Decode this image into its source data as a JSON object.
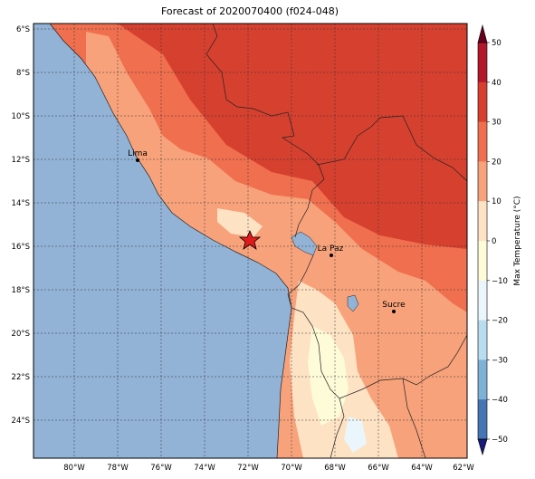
{
  "title": "Forecast of 2020070400 (f024-048)",
  "map": {
    "lon_ticks": [
      "80°W",
      "78°W",
      "76°W",
      "74°W",
      "72°W",
      "70°W",
      "68°W",
      "66°W",
      "64°W",
      "62°W"
    ],
    "lat_ticks": [
      "6°S",
      "8°S",
      "10°S",
      "12°S",
      "14°S",
      "16°S",
      "18°S",
      "20°S",
      "22°S",
      "24°S"
    ],
    "cities": [
      {
        "name": "Lima"
      },
      {
        "name": "La Paz"
      },
      {
        "name": "Sucre"
      }
    ],
    "marker": {
      "icon": "star-icon",
      "color": "#e31a1c"
    },
    "ocean_color": "#92b3d6"
  },
  "colorbar": {
    "label": "Max Temperature (°C)",
    "ticks": [
      "50",
      "40",
      "30",
      "20",
      "10",
      "0",
      "−10",
      "−20",
      "−30",
      "−40",
      "−50"
    ],
    "colors": [
      "#67001f",
      "#b2182b",
      "#d6402f",
      "#ef6f4e",
      "#f7a27a",
      "#fde2c4",
      "#fefbd8",
      "#eaf6fb",
      "#b9dcef",
      "#7fb0d6",
      "#4575b4",
      "#2b4c9a",
      "#1a1a7a"
    ]
  }
}
